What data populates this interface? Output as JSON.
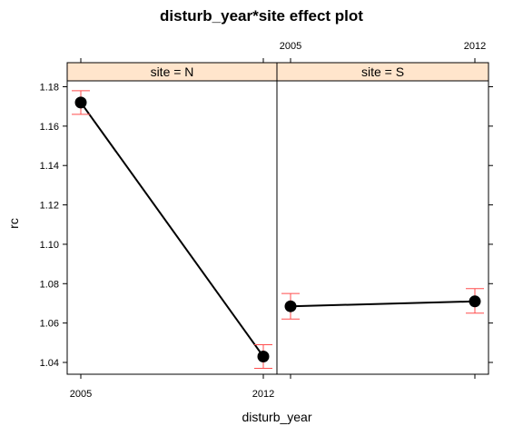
{
  "chart_data": {
    "type": "line",
    "title": "disturb_year*site effect plot",
    "xlabel": "disturb_year",
    "ylabel": "rc",
    "categories": [
      "2005",
      "2012"
    ],
    "ylim": [
      1.034,
      1.183
    ],
    "yticks": [
      "1.04",
      "1.06",
      "1.08",
      "1.10",
      "1.12",
      "1.14",
      "1.16",
      "1.18"
    ],
    "panels": [
      {
        "strip": "site = N",
        "points": [
          {
            "x": "2005",
            "y": 1.172,
            "lower": 1.166,
            "upper": 1.178
          },
          {
            "x": "2012",
            "y": 1.043,
            "lower": 1.037,
            "upper": 1.049
          }
        ]
      },
      {
        "strip": "site = S",
        "points": [
          {
            "x": "2005",
            "y": 1.0685,
            "lower": 1.062,
            "upper": 1.075
          },
          {
            "x": "2012",
            "y": 1.071,
            "lower": 1.065,
            "upper": 1.0775
          }
        ]
      }
    ],
    "colors": {
      "strip_fill": "#ffe5cc",
      "line": "#000000",
      "point": "#000000",
      "error_bar": "#ff4d4d"
    },
    "grid": false,
    "legend": "none"
  }
}
